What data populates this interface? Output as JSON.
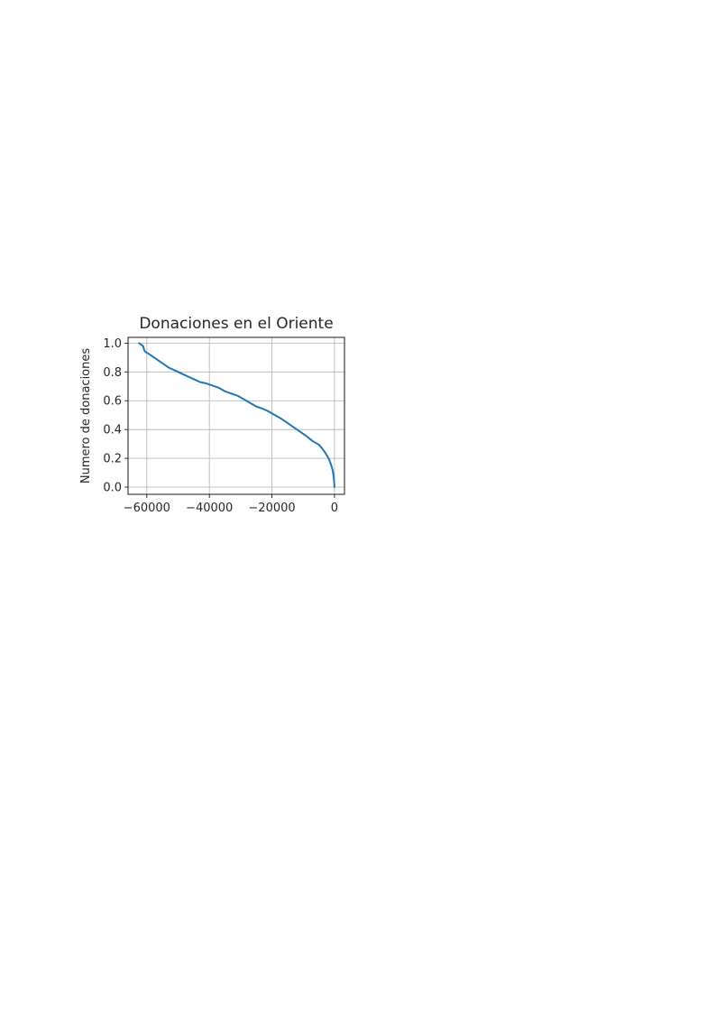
{
  "chart_data": {
    "type": "line",
    "title": "Donaciones en el Oriente",
    "xlabel": "",
    "ylabel": "Numero de donaciones",
    "xlim": [
      -66000,
      3200
    ],
    "ylim": [
      -0.05,
      1.04
    ],
    "grid": true,
    "x_ticks": [
      -60000,
      -40000,
      -20000,
      0
    ],
    "x_tick_labels": [
      "−60000",
      "−40000",
      "−20000",
      "0"
    ],
    "y_ticks": [
      0.0,
      0.2,
      0.4,
      0.6,
      0.8,
      1.0
    ],
    "y_tick_labels": [
      "0.0",
      "0.2",
      "0.4",
      "0.6",
      "0.8",
      "1.0"
    ],
    "series": [
      {
        "color": "#1f77b4",
        "x": [
          -62500,
          -61200,
          -60800,
          -60500,
          -59000,
          -57000,
          -55000,
          -53000,
          -51000,
          -49000,
          -47000,
          -45000,
          -43000,
          -41000,
          -39000,
          -37000,
          -35000,
          -33000,
          -31000,
          -29000,
          -27000,
          -25000,
          -23000,
          -21000,
          -19000,
          -17000,
          -15000,
          -13000,
          -11000,
          -9000,
          -7000,
          -5000,
          -4000,
          -3000,
          -2000,
          -1500,
          -1000,
          -600,
          -300,
          -100,
          0
        ],
        "y": [
          1.0,
          0.98,
          0.95,
          0.94,
          0.92,
          0.89,
          0.86,
          0.83,
          0.81,
          0.79,
          0.77,
          0.75,
          0.73,
          0.72,
          0.705,
          0.69,
          0.665,
          0.65,
          0.635,
          0.61,
          0.585,
          0.56,
          0.545,
          0.525,
          0.5,
          0.475,
          0.445,
          0.415,
          0.385,
          0.355,
          0.32,
          0.295,
          0.27,
          0.24,
          0.205,
          0.18,
          0.15,
          0.12,
          0.08,
          0.04,
          0.0
        ]
      }
    ]
  }
}
